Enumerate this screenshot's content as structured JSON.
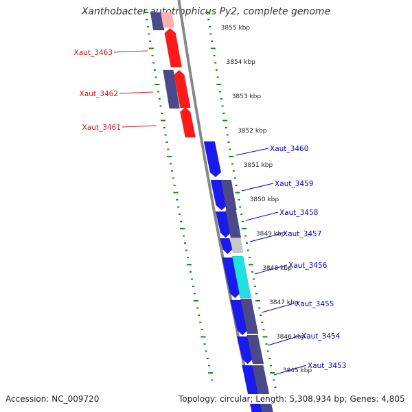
{
  "title": "Xanthobacter autotrophicus Py2, complete genome",
  "footer": {
    "accession": "Accession: NC_009720",
    "summary": "Topology: circular; Length: 5,308,934 bp; Genes: 4,805"
  },
  "ticks": [
    {
      "label": "3855 kbp",
      "kbp": 3855
    },
    {
      "label": "3854 kbp",
      "kbp": 3854
    },
    {
      "label": "3853 kbp",
      "kbp": 3853
    },
    {
      "label": "3852 kbp",
      "kbp": 3852
    },
    {
      "label": "3851 kbp",
      "kbp": 3851
    },
    {
      "label": "3850 kbp",
      "kbp": 3850
    },
    {
      "label": "3849 kbp",
      "kbp": 3849
    },
    {
      "label": "3848 kbp",
      "kbp": 3848
    },
    {
      "label": "3847 kbp",
      "kbp": 3847
    },
    {
      "label": "3846 kbp",
      "kbp": 3846
    },
    {
      "label": "3845 kbp",
      "kbp": 3845
    }
  ],
  "genes": [
    {
      "label": "Xaut_3463",
      "strand": "reverse",
      "color": "#dd1111"
    },
    {
      "label": "Xaut_3462",
      "strand": "reverse",
      "color": "#dd1111"
    },
    {
      "label": "Xaut_3461",
      "strand": "reverse",
      "color": "#dd1111"
    },
    {
      "label": "Xaut_3460",
      "strand": "forward",
      "color": "#0000cc"
    },
    {
      "label": "Xaut_3459",
      "strand": "forward",
      "color": "#0000cc"
    },
    {
      "label": "Xaut_3458",
      "strand": "forward",
      "color": "#0000cc"
    },
    {
      "label": "Xaut_3457",
      "strand": "forward",
      "color": "#0000cc"
    },
    {
      "label": "Xaut_3456",
      "strand": "forward",
      "color": "#0000cc"
    },
    {
      "label": "Xaut_3455",
      "strand": "forward",
      "color": "#0000cc"
    },
    {
      "label": "Xaut_3454",
      "strand": "forward",
      "color": "#0000cc"
    },
    {
      "label": "Xaut_3453",
      "strand": "forward",
      "color": "#0000cc"
    }
  ],
  "colors": {
    "cds_forward": "#1a1aee",
    "cds_reverse": "#ff1a1a",
    "gene_track": "#4a4a8a",
    "trna": "#22e0e0",
    "other": "#c8c8c8",
    "backbone": "#888888",
    "tick": "#118811"
  }
}
